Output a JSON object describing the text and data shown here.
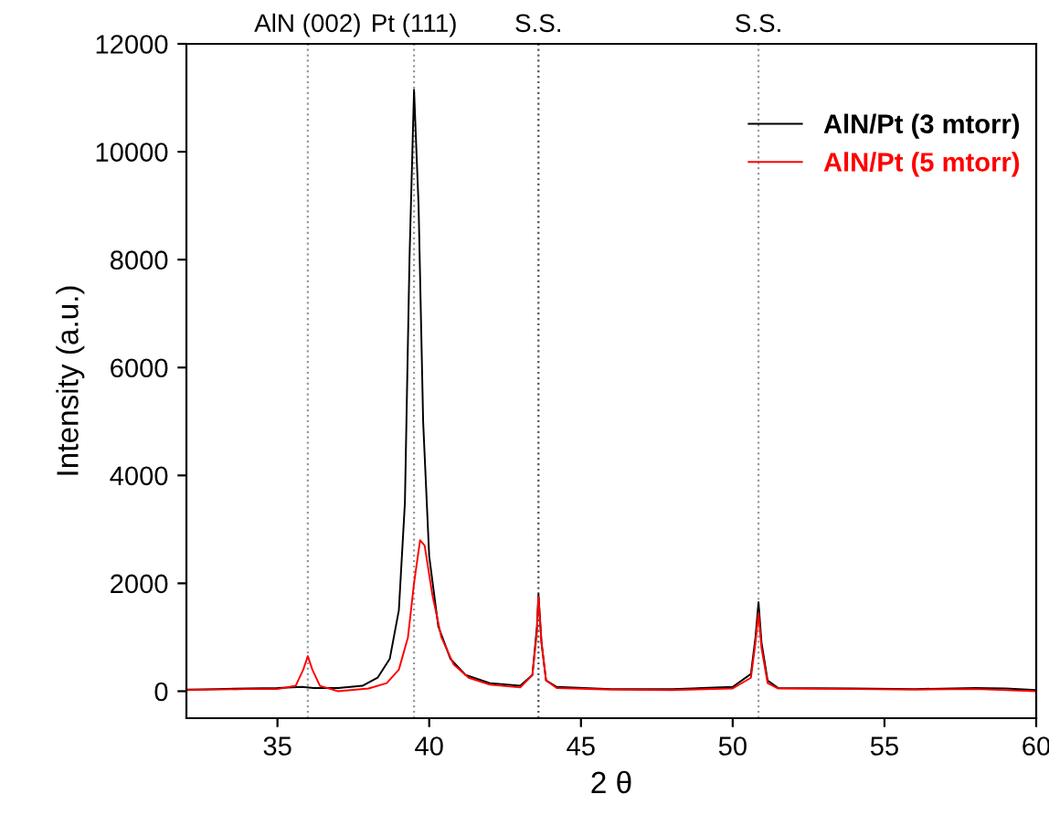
{
  "chart_data": {
    "type": "line",
    "xlabel": "2 θ",
    "ylabel": "Intensity (a.u.)",
    "xlim": [
      32,
      60
    ],
    "ylim": [
      -500,
      12000
    ],
    "xticks": [
      35,
      40,
      45,
      50,
      55,
      60
    ],
    "yticks": [
      0,
      2000,
      4000,
      6000,
      8000,
      10000,
      12000
    ],
    "grid": false,
    "legend": "top right",
    "marker": "none",
    "line_style": "solid",
    "ref_lines": [
      {
        "axis": "x",
        "value": 36.0,
        "label": "AlN (002)",
        "color": "#999999",
        "line_style": "dotted"
      },
      {
        "axis": "x",
        "value": 39.5,
        "label": "Pt (111)",
        "color": "#999999",
        "line_style": "dotted"
      },
      {
        "axis": "x",
        "value": 43.6,
        "label": "S.S.",
        "color": "#555555",
        "line_style": "dotted"
      },
      {
        "axis": "x",
        "value": 50.85,
        "label": "S.S.",
        "color": "#999999",
        "line_style": "dotted"
      }
    ],
    "series": [
      {
        "name": "AlN/Pt (3 mtorr)",
        "color": "#000000",
        "x": [
          32,
          33,
          34,
          35,
          35.8,
          36.2,
          37,
          37.8,
          38.3,
          38.7,
          39.0,
          39.2,
          39.35,
          39.5,
          39.65,
          39.8,
          40.0,
          40.3,
          40.7,
          41.2,
          42,
          43,
          43.4,
          43.55,
          43.6,
          43.7,
          43.85,
          44.2,
          46,
          48,
          50,
          50.6,
          50.75,
          50.85,
          50.95,
          51.15,
          51.5,
          54,
          56,
          58,
          59,
          60
        ],
        "values": [
          30,
          40,
          50,
          60,
          80,
          60,
          60,
          100,
          250,
          600,
          1500,
          3500,
          8000,
          11150,
          9000,
          5000,
          2500,
          1200,
          600,
          300,
          150,
          100,
          300,
          1200,
          1800,
          900,
          200,
          80,
          40,
          40,
          80,
          320,
          1000,
          1650,
          900,
          200,
          60,
          50,
          40,
          60,
          50,
          20
        ]
      },
      {
        "name": "AlN/Pt (5 mtorr)",
        "color": "#ff0000",
        "x": [
          32,
          34,
          35,
          35.6,
          35.85,
          36.0,
          36.15,
          36.4,
          37,
          38,
          38.6,
          39.0,
          39.3,
          39.5,
          39.7,
          39.85,
          40.1,
          40.4,
          40.8,
          41.3,
          42,
          43,
          43.4,
          43.55,
          43.6,
          43.7,
          43.85,
          44.2,
          46,
          48,
          50,
          50.6,
          50.75,
          50.85,
          50.95,
          51.15,
          51.5,
          54,
          56,
          58,
          60
        ],
        "values": [
          20,
          40,
          40,
          100,
          400,
          650,
          400,
          100,
          0,
          50,
          150,
          400,
          1000,
          2000,
          2800,
          2700,
          1800,
          1000,
          500,
          250,
          120,
          70,
          300,
          1100,
          1750,
          900,
          200,
          60,
          30,
          20,
          50,
          250,
          900,
          1450,
          800,
          150,
          50,
          40,
          30,
          40,
          0
        ]
      }
    ]
  }
}
